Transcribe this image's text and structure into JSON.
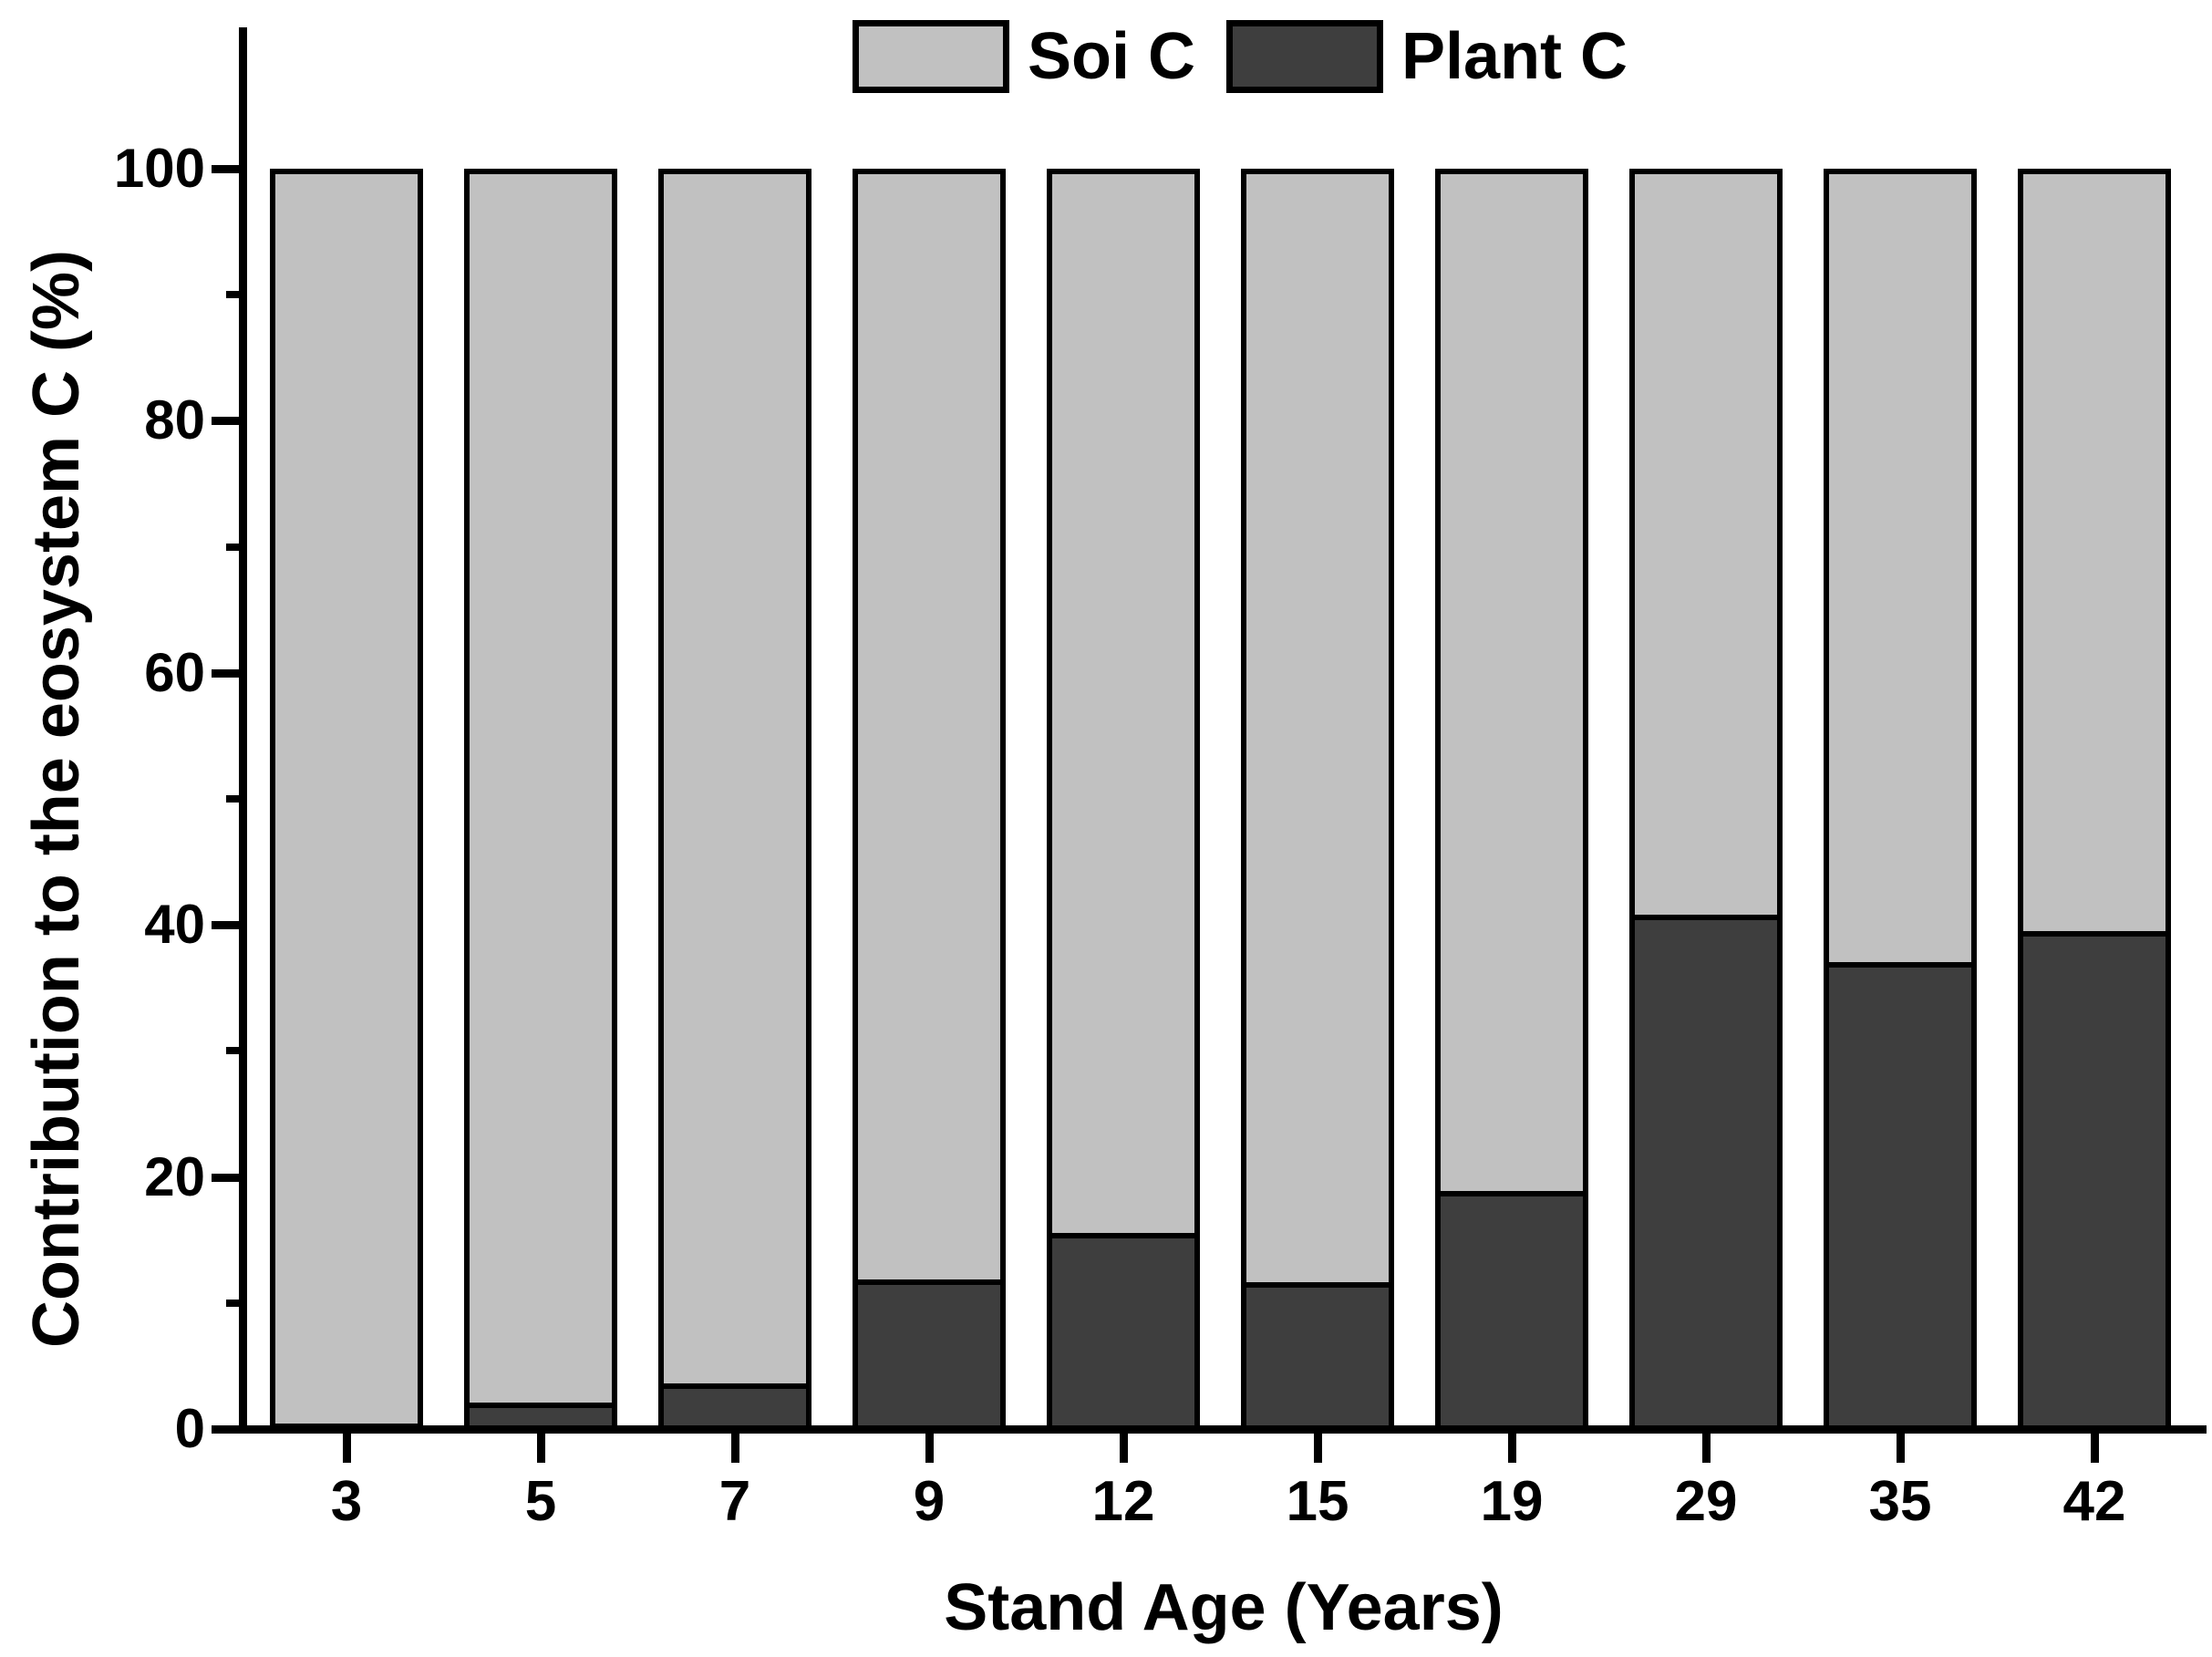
{
  "chart_data": {
    "type": "bar",
    "stacked": true,
    "title": "",
    "xlabel": "Stand Age (Years)",
    "ylabel": "Contribution to the eosystem C (%)",
    "categories": [
      "3",
      "5",
      "7",
      "9",
      "12",
      "15",
      "19",
      "29",
      "35",
      "42"
    ],
    "series": [
      {
        "name": "Soi C",
        "color": "#c1c1c1",
        "values": [
          99.7,
          97.9,
          96.4,
          88.1,
          84.4,
          88.3,
          81.0,
          59.0,
          62.8,
          60.3
        ]
      },
      {
        "name": "Plant C",
        "color": "#3e3e3e",
        "values": [
          0.3,
          2.1,
          3.6,
          11.9,
          15.6,
          11.7,
          19.0,
          41.0,
          37.2,
          39.7
        ]
      }
    ],
    "ylim": [
      0,
      100
    ],
    "yticks": [
      0,
      20,
      40,
      60,
      80,
      100
    ],
    "y_minor_ticks": [
      10,
      30,
      50,
      70,
      90
    ],
    "legend_position": "top",
    "grid": false,
    "bar_outline_color": "#000000",
    "axis_color": "#000000"
  }
}
